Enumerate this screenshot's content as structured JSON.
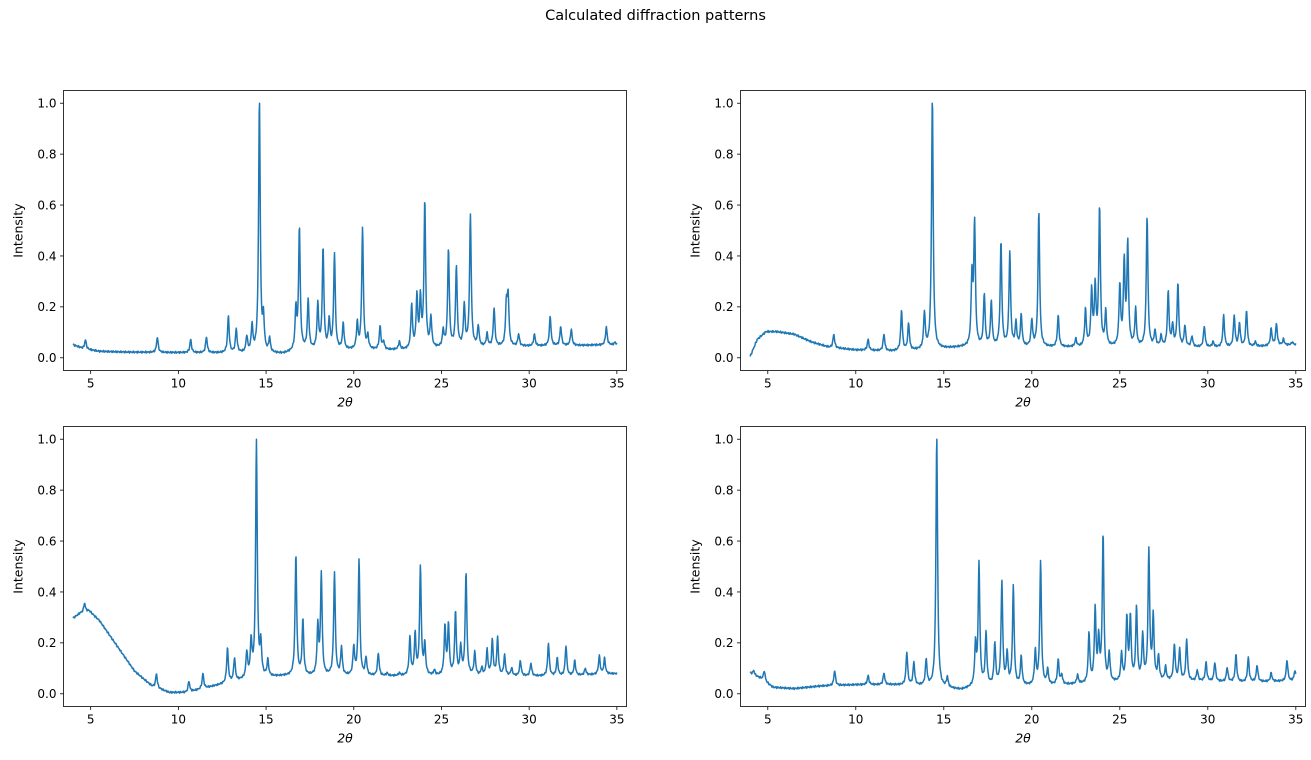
{
  "figure": {
    "suptitle": "Calculated diffraction patterns",
    "line_color": "#1f77b4"
  },
  "chart_data": [
    {
      "type": "line",
      "xlabel": "2θ",
      "ylabel": "Intensity",
      "xlim": [
        3.45,
        35.55
      ],
      "ylim": [
        -0.05,
        1.05
      ],
      "xticks": [
        5,
        10,
        15,
        20,
        25,
        30,
        35
      ],
      "yticks": [
        0.0,
        0.2,
        0.4,
        0.6,
        0.8,
        1.0
      ],
      "grid": false,
      "baseline": [
        [
          4,
          0.05
        ],
        [
          4.6,
          0.035
        ],
        [
          5.5,
          0.025
        ],
        [
          7,
          0.022
        ],
        [
          10,
          0.02
        ],
        [
          14,
          0.018
        ],
        [
          16,
          0.015
        ],
        [
          17,
          0.03
        ],
        [
          20,
          0.03
        ],
        [
          23,
          0.03
        ],
        [
          26,
          0.04
        ],
        [
          30,
          0.045
        ],
        [
          35,
          0.05
        ]
      ],
      "peaks": [
        [
          4.7,
          0.07
        ],
        [
          8.8,
          0.08
        ],
        [
          10.7,
          0.07
        ],
        [
          11.6,
          0.08
        ],
        [
          12.85,
          0.16
        ],
        [
          13.3,
          0.11
        ],
        [
          13.9,
          0.08
        ],
        [
          14.2,
          0.12
        ],
        [
          14.62,
          1.0
        ],
        [
          14.85,
          0.14
        ],
        [
          15.2,
          0.07
        ],
        [
          16.7,
          0.18
        ],
        [
          16.9,
          0.5
        ],
        [
          17.4,
          0.22
        ],
        [
          17.95,
          0.2
        ],
        [
          18.25,
          0.42
        ],
        [
          18.6,
          0.14
        ],
        [
          18.9,
          0.4
        ],
        [
          19.4,
          0.13
        ],
        [
          20.2,
          0.13
        ],
        [
          20.5,
          0.5
        ],
        [
          20.8,
          0.08
        ],
        [
          21.5,
          0.12
        ],
        [
          21.7,
          0.06
        ],
        [
          22.6,
          0.06
        ],
        [
          23.3,
          0.2
        ],
        [
          23.6,
          0.23
        ],
        [
          23.8,
          0.22
        ],
        [
          24.05,
          0.6
        ],
        [
          24.4,
          0.15
        ],
        [
          25.1,
          0.1
        ],
        [
          25.4,
          0.42
        ],
        [
          25.85,
          0.35
        ],
        [
          26.3,
          0.2
        ],
        [
          26.65,
          0.55
        ],
        [
          27.1,
          0.12
        ],
        [
          27.6,
          0.09
        ],
        [
          28.0,
          0.19
        ],
        [
          28.7,
          0.2
        ],
        [
          28.8,
          0.23
        ],
        [
          29.4,
          0.09
        ],
        [
          30.3,
          0.09
        ],
        [
          31.2,
          0.16
        ],
        [
          31.8,
          0.12
        ],
        [
          32.4,
          0.11
        ],
        [
          33.7,
          0.05
        ],
        [
          34.4,
          0.12
        ],
        [
          34.9,
          0.06
        ]
      ]
    },
    {
      "type": "line",
      "xlabel": "2θ",
      "ylabel": "Intensity",
      "xlim": [
        3.45,
        35.55
      ],
      "ylim": [
        -0.05,
        1.05
      ],
      "xticks": [
        5,
        10,
        15,
        20,
        25,
        30,
        35
      ],
      "yticks": [
        0.0,
        0.2,
        0.4,
        0.6,
        0.8,
        1.0
      ],
      "grid": false,
      "baseline": [
        [
          4,
          0.005
        ],
        [
          4.4,
          0.07
        ],
        [
          4.9,
          0.1
        ],
        [
          5.5,
          0.1
        ],
        [
          6.5,
          0.09
        ],
        [
          7.5,
          0.06
        ],
        [
          8.5,
          0.04
        ],
        [
          10,
          0.03
        ],
        [
          12,
          0.025
        ],
        [
          14,
          0.03
        ],
        [
          16,
          0.04
        ],
        [
          20,
          0.04
        ],
        [
          24,
          0.04
        ],
        [
          28,
          0.04
        ],
        [
          32,
          0.04
        ],
        [
          35,
          0.05
        ]
      ],
      "peaks": [
        [
          8.75,
          0.09
        ],
        [
          10.7,
          0.07
        ],
        [
          11.6,
          0.09
        ],
        [
          12.6,
          0.18
        ],
        [
          13.0,
          0.13
        ],
        [
          13.9,
          0.17
        ],
        [
          14.35,
          1.0
        ],
        [
          16.6,
          0.3
        ],
        [
          16.75,
          0.51
        ],
        [
          17.3,
          0.24
        ],
        [
          17.7,
          0.21
        ],
        [
          18.25,
          0.44
        ],
        [
          18.75,
          0.4
        ],
        [
          19.1,
          0.13
        ],
        [
          19.4,
          0.16
        ],
        [
          20.0,
          0.14
        ],
        [
          20.4,
          0.56
        ],
        [
          21.5,
          0.16
        ],
        [
          22.5,
          0.07
        ],
        [
          23.05,
          0.18
        ],
        [
          23.4,
          0.25
        ],
        [
          23.6,
          0.26
        ],
        [
          23.85,
          0.57
        ],
        [
          24.2,
          0.17
        ],
        [
          25.0,
          0.27
        ],
        [
          25.25,
          0.36
        ],
        [
          25.45,
          0.43
        ],
        [
          25.9,
          0.18
        ],
        [
          26.55,
          0.54
        ],
        [
          27.0,
          0.1
        ],
        [
          27.35,
          0.08
        ],
        [
          27.75,
          0.25
        ],
        [
          28.0,
          0.12
        ],
        [
          28.3,
          0.28
        ],
        [
          28.7,
          0.12
        ],
        [
          29.1,
          0.08
        ],
        [
          29.8,
          0.12
        ],
        [
          30.3,
          0.06
        ],
        [
          30.9,
          0.16
        ],
        [
          31.5,
          0.16
        ],
        [
          31.8,
          0.13
        ],
        [
          32.2,
          0.18
        ],
        [
          32.7,
          0.06
        ],
        [
          33.6,
          0.11
        ],
        [
          33.9,
          0.13
        ],
        [
          34.3,
          0.07
        ],
        [
          34.8,
          0.06
        ]
      ]
    },
    {
      "type": "line",
      "xlabel": "2θ",
      "ylabel": "Intensity",
      "xlim": [
        3.45,
        35.55
      ],
      "ylim": [
        -0.05,
        1.05
      ],
      "xticks": [
        5,
        10,
        15,
        20,
        25,
        30,
        35
      ],
      "yticks": [
        0.0,
        0.2,
        0.4,
        0.6,
        0.8,
        1.0
      ],
      "grid": false,
      "baseline": [
        [
          4,
          0.3
        ],
        [
          4.4,
          0.32
        ],
        [
          4.9,
          0.33
        ],
        [
          5.5,
          0.29
        ],
        [
          6.5,
          0.19
        ],
        [
          7.5,
          0.09
        ],
        [
          8.5,
          0.03
        ],
        [
          9.5,
          0.005
        ],
        [
          10.5,
          0.005
        ],
        [
          12,
          0.03
        ],
        [
          14,
          0.06
        ],
        [
          16,
          0.07
        ],
        [
          20,
          0.07
        ],
        [
          24,
          0.07
        ],
        [
          28,
          0.07
        ],
        [
          32,
          0.07
        ],
        [
          35,
          0.08
        ]
      ],
      "peaks": [
        [
          4.65,
          0.36
        ],
        [
          8.75,
          0.08
        ],
        [
          10.6,
          0.05
        ],
        [
          11.4,
          0.08
        ],
        [
          12.8,
          0.18
        ],
        [
          13.2,
          0.14
        ],
        [
          13.9,
          0.16
        ],
        [
          14.15,
          0.2
        ],
        [
          14.45,
          1.0
        ],
        [
          14.7,
          0.19
        ],
        [
          15.1,
          0.13
        ],
        [
          16.7,
          0.55
        ],
        [
          17.1,
          0.29
        ],
        [
          17.95,
          0.26
        ],
        [
          18.15,
          0.47
        ],
        [
          18.9,
          0.48
        ],
        [
          19.3,
          0.18
        ],
        [
          20.0,
          0.18
        ],
        [
          20.3,
          0.53
        ],
        [
          20.7,
          0.14
        ],
        [
          21.4,
          0.16
        ],
        [
          21.9,
          0.08
        ],
        [
          22.6,
          0.08
        ],
        [
          23.2,
          0.22
        ],
        [
          23.5,
          0.23
        ],
        [
          23.8,
          0.5
        ],
        [
          24.05,
          0.19
        ],
        [
          24.6,
          0.09
        ],
        [
          25.2,
          0.26
        ],
        [
          25.4,
          0.27
        ],
        [
          25.8,
          0.32
        ],
        [
          26.1,
          0.18
        ],
        [
          26.4,
          0.48
        ],
        [
          26.9,
          0.16
        ],
        [
          27.3,
          0.1
        ],
        [
          27.6,
          0.17
        ],
        [
          27.9,
          0.21
        ],
        [
          28.2,
          0.22
        ],
        [
          28.6,
          0.15
        ],
        [
          29.0,
          0.1
        ],
        [
          29.5,
          0.13
        ],
        [
          30.1,
          0.12
        ],
        [
          31.1,
          0.2
        ],
        [
          31.6,
          0.14
        ],
        [
          32.1,
          0.19
        ],
        [
          32.6,
          0.13
        ],
        [
          33.2,
          0.1
        ],
        [
          34.0,
          0.15
        ],
        [
          34.3,
          0.14
        ]
      ]
    },
    {
      "type": "line",
      "xlabel": "2θ",
      "ylabel": "Intensity",
      "xlim": [
        3.45,
        35.55
      ],
      "ylim": [
        -0.05,
        1.05
      ],
      "xticks": [
        5,
        10,
        15,
        20,
        25,
        30,
        35
      ],
      "yticks": [
        0.0,
        0.2,
        0.4,
        0.6,
        0.8,
        1.0
      ],
      "grid": false,
      "baseline": [
        [
          4,
          0.08
        ],
        [
          4.6,
          0.06
        ],
        [
          5.3,
          0.025
        ],
        [
          6.5,
          0.02
        ],
        [
          8,
          0.03
        ],
        [
          10,
          0.035
        ],
        [
          12,
          0.035
        ],
        [
          14,
          0.03
        ],
        [
          16,
          0.015
        ],
        [
          17,
          0.03
        ],
        [
          20,
          0.03
        ],
        [
          24,
          0.04
        ],
        [
          28,
          0.05
        ],
        [
          32,
          0.045
        ],
        [
          35,
          0.05
        ]
      ],
      "peaks": [
        [
          4.2,
          0.09
        ],
        [
          4.8,
          0.09
        ],
        [
          8.8,
          0.09
        ],
        [
          10.7,
          0.07
        ],
        [
          11.6,
          0.08
        ],
        [
          12.9,
          0.16
        ],
        [
          13.3,
          0.12
        ],
        [
          14.0,
          0.13
        ],
        [
          14.6,
          1.0
        ],
        [
          15.2,
          0.06
        ],
        [
          16.8,
          0.18
        ],
        [
          17.0,
          0.5
        ],
        [
          17.4,
          0.23
        ],
        [
          17.9,
          0.19
        ],
        [
          18.3,
          0.43
        ],
        [
          18.6,
          0.15
        ],
        [
          18.95,
          0.41
        ],
        [
          19.4,
          0.14
        ],
        [
          20.2,
          0.16
        ],
        [
          20.5,
          0.51
        ],
        [
          20.9,
          0.09
        ],
        [
          21.5,
          0.13
        ],
        [
          21.7,
          0.07
        ],
        [
          22.6,
          0.07
        ],
        [
          23.25,
          0.23
        ],
        [
          23.6,
          0.32
        ],
        [
          23.8,
          0.2
        ],
        [
          24.05,
          0.61
        ],
        [
          24.4,
          0.15
        ],
        [
          25.1,
          0.15
        ],
        [
          25.4,
          0.29
        ],
        [
          25.6,
          0.29
        ],
        [
          25.95,
          0.33
        ],
        [
          26.3,
          0.22
        ],
        [
          26.65,
          0.55
        ],
        [
          26.9,
          0.29
        ],
        [
          27.2,
          0.14
        ],
        [
          27.6,
          0.1
        ],
        [
          28.1,
          0.19
        ],
        [
          28.4,
          0.17
        ],
        [
          28.8,
          0.21
        ],
        [
          29.4,
          0.09
        ],
        [
          29.9,
          0.12
        ],
        [
          30.4,
          0.12
        ],
        [
          31.1,
          0.1
        ],
        [
          31.6,
          0.15
        ],
        [
          32.3,
          0.14
        ],
        [
          32.8,
          0.11
        ],
        [
          33.6,
          0.08
        ],
        [
          34.5,
          0.13
        ],
        [
          34.95,
          0.09
        ]
      ]
    }
  ]
}
